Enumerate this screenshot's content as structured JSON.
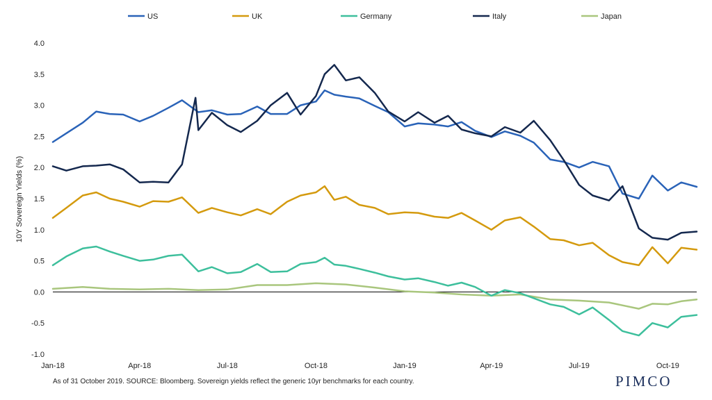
{
  "footnote": "As of 31 October 2019. SOURCE: Bloomberg.  Sovereign yields reflect the generic 10yr benchmarks for each country.",
  "brand": "PIMCO",
  "chart_data": {
    "type": "line",
    "title": "",
    "xlabel": "",
    "ylabel": "10Y Sovereign Yields (%)",
    "ylim": [
      -1.0,
      4.0
    ],
    "yticks": [
      "4.0",
      "3.5",
      "3.0",
      "2.5",
      "2.0",
      "1.5",
      "1.0",
      "0.5",
      "0.0",
      "-0.5",
      "-1.0"
    ],
    "xticks": [
      "Jan-18",
      "Apr-18",
      "Jul-18",
      "Oct-18",
      "Jan-19",
      "Apr-19",
      "Jul-19",
      "Oct-19"
    ],
    "x_tick_dates": [
      "2018-01-01",
      "2018-04-01",
      "2018-07-01",
      "2018-10-01",
      "2019-01-01",
      "2019-04-01",
      "2019-07-01",
      "2019-10-01"
    ],
    "x_range": [
      "2018-01-01",
      "2019-10-31"
    ],
    "grid": false,
    "legend_position": "top",
    "series": [
      {
        "name": "US",
        "color": "#2a63b8",
        "points": [
          [
            "2018-01-01",
            2.41
          ],
          [
            "2018-01-15",
            2.55
          ],
          [
            "2018-02-01",
            2.72
          ],
          [
            "2018-02-15",
            2.9
          ],
          [
            "2018-03-01",
            2.86
          ],
          [
            "2018-03-15",
            2.85
          ],
          [
            "2018-04-01",
            2.74
          ],
          [
            "2018-04-15",
            2.83
          ],
          [
            "2018-05-01",
            2.96
          ],
          [
            "2018-05-15",
            3.08
          ],
          [
            "2018-06-01",
            2.89
          ],
          [
            "2018-06-15",
            2.92
          ],
          [
            "2018-07-01",
            2.85
          ],
          [
            "2018-07-15",
            2.86
          ],
          [
            "2018-08-01",
            2.98
          ],
          [
            "2018-08-15",
            2.86
          ],
          [
            "2018-09-01",
            2.86
          ],
          [
            "2018-09-15",
            3.0
          ],
          [
            "2018-10-01",
            3.06
          ],
          [
            "2018-10-10",
            3.24
          ],
          [
            "2018-10-20",
            3.17
          ],
          [
            "2018-11-01",
            3.14
          ],
          [
            "2018-11-15",
            3.11
          ],
          [
            "2018-12-01",
            2.99
          ],
          [
            "2018-12-15",
            2.89
          ],
          [
            "2019-01-01",
            2.66
          ],
          [
            "2019-01-15",
            2.71
          ],
          [
            "2019-02-01",
            2.69
          ],
          [
            "2019-02-15",
            2.66
          ],
          [
            "2019-03-01",
            2.73
          ],
          [
            "2019-03-15",
            2.59
          ],
          [
            "2019-04-01",
            2.49
          ],
          [
            "2019-04-15",
            2.58
          ],
          [
            "2019-05-01",
            2.51
          ],
          [
            "2019-05-15",
            2.4
          ],
          [
            "2019-06-01",
            2.13
          ],
          [
            "2019-06-15",
            2.09
          ],
          [
            "2019-07-01",
            2.0
          ],
          [
            "2019-07-15",
            2.09
          ],
          [
            "2019-08-01",
            2.02
          ],
          [
            "2019-08-15",
            1.58
          ],
          [
            "2019-09-01",
            1.5
          ],
          [
            "2019-09-15",
            1.87
          ],
          [
            "2019-10-01",
            1.63
          ],
          [
            "2019-10-15",
            1.76
          ],
          [
            "2019-10-31",
            1.69
          ]
        ]
      },
      {
        "name": "UK",
        "color": "#d49a0e",
        "points": [
          [
            "2018-01-01",
            1.19
          ],
          [
            "2018-01-15",
            1.35
          ],
          [
            "2018-02-01",
            1.55
          ],
          [
            "2018-02-15",
            1.6
          ],
          [
            "2018-03-01",
            1.5
          ],
          [
            "2018-03-15",
            1.45
          ],
          [
            "2018-04-01",
            1.37
          ],
          [
            "2018-04-15",
            1.46
          ],
          [
            "2018-05-01",
            1.45
          ],
          [
            "2018-05-15",
            1.52
          ],
          [
            "2018-06-01",
            1.27
          ],
          [
            "2018-06-15",
            1.35
          ],
          [
            "2018-07-01",
            1.28
          ],
          [
            "2018-07-15",
            1.23
          ],
          [
            "2018-08-01",
            1.33
          ],
          [
            "2018-08-15",
            1.25
          ],
          [
            "2018-09-01",
            1.45
          ],
          [
            "2018-09-15",
            1.55
          ],
          [
            "2018-10-01",
            1.6
          ],
          [
            "2018-10-10",
            1.7
          ],
          [
            "2018-10-20",
            1.48
          ],
          [
            "2018-11-01",
            1.53
          ],
          [
            "2018-11-15",
            1.4
          ],
          [
            "2018-12-01",
            1.35
          ],
          [
            "2018-12-15",
            1.25
          ],
          [
            "2019-01-01",
            1.28
          ],
          [
            "2019-01-15",
            1.27
          ],
          [
            "2019-02-01",
            1.21
          ],
          [
            "2019-02-15",
            1.19
          ],
          [
            "2019-03-01",
            1.27
          ],
          [
            "2019-03-15",
            1.15
          ],
          [
            "2019-04-01",
            1.0
          ],
          [
            "2019-04-15",
            1.15
          ],
          [
            "2019-05-01",
            1.2
          ],
          [
            "2019-05-15",
            1.05
          ],
          [
            "2019-06-01",
            0.85
          ],
          [
            "2019-06-15",
            0.83
          ],
          [
            "2019-07-01",
            0.75
          ],
          [
            "2019-07-15",
            0.79
          ],
          [
            "2019-08-01",
            0.59
          ],
          [
            "2019-08-15",
            0.48
          ],
          [
            "2019-09-01",
            0.43
          ],
          [
            "2019-09-15",
            0.72
          ],
          [
            "2019-10-01",
            0.46
          ],
          [
            "2019-10-15",
            0.71
          ],
          [
            "2019-10-31",
            0.68
          ]
        ]
      },
      {
        "name": "Germany",
        "color": "#3dbf9c",
        "points": [
          [
            "2018-01-01",
            0.43
          ],
          [
            "2018-01-15",
            0.57
          ],
          [
            "2018-02-01",
            0.7
          ],
          [
            "2018-02-15",
            0.73
          ],
          [
            "2018-03-01",
            0.65
          ],
          [
            "2018-03-15",
            0.58
          ],
          [
            "2018-04-01",
            0.5
          ],
          [
            "2018-04-15",
            0.52
          ],
          [
            "2018-05-01",
            0.58
          ],
          [
            "2018-05-15",
            0.6
          ],
          [
            "2018-06-01",
            0.33
          ],
          [
            "2018-06-15",
            0.4
          ],
          [
            "2018-07-01",
            0.3
          ],
          [
            "2018-07-15",
            0.32
          ],
          [
            "2018-08-01",
            0.45
          ],
          [
            "2018-08-15",
            0.32
          ],
          [
            "2018-09-01",
            0.33
          ],
          [
            "2018-09-15",
            0.45
          ],
          [
            "2018-10-01",
            0.48
          ],
          [
            "2018-10-10",
            0.55
          ],
          [
            "2018-10-20",
            0.44
          ],
          [
            "2018-11-01",
            0.42
          ],
          [
            "2018-11-15",
            0.37
          ],
          [
            "2018-12-01",
            0.31
          ],
          [
            "2018-12-15",
            0.25
          ],
          [
            "2019-01-01",
            0.2
          ],
          [
            "2019-01-15",
            0.22
          ],
          [
            "2019-02-01",
            0.16
          ],
          [
            "2019-02-15",
            0.1
          ],
          [
            "2019-03-01",
            0.15
          ],
          [
            "2019-03-15",
            0.08
          ],
          [
            "2019-04-01",
            -0.06
          ],
          [
            "2019-04-15",
            0.03
          ],
          [
            "2019-05-01",
            -0.02
          ],
          [
            "2019-05-15",
            -0.1
          ],
          [
            "2019-06-01",
            -0.2
          ],
          [
            "2019-06-15",
            -0.24
          ],
          [
            "2019-07-01",
            -0.36
          ],
          [
            "2019-07-15",
            -0.25
          ],
          [
            "2019-08-01",
            -0.45
          ],
          [
            "2019-08-15",
            -0.63
          ],
          [
            "2019-09-01",
            -0.7
          ],
          [
            "2019-09-15",
            -0.5
          ],
          [
            "2019-10-01",
            -0.57
          ],
          [
            "2019-10-15",
            -0.4
          ],
          [
            "2019-10-31",
            -0.37
          ]
        ]
      },
      {
        "name": "Italy",
        "color": "#14284e",
        "points": [
          [
            "2018-01-01",
            2.02
          ],
          [
            "2018-01-15",
            1.95
          ],
          [
            "2018-02-01",
            2.02
          ],
          [
            "2018-02-15",
            2.03
          ],
          [
            "2018-03-01",
            2.05
          ],
          [
            "2018-03-15",
            1.97
          ],
          [
            "2018-04-01",
            1.76
          ],
          [
            "2018-04-15",
            1.77
          ],
          [
            "2018-05-01",
            1.76
          ],
          [
            "2018-05-15",
            2.05
          ],
          [
            "2018-05-29",
            3.12
          ],
          [
            "2018-06-01",
            2.6
          ],
          [
            "2018-06-15",
            2.88
          ],
          [
            "2018-07-01",
            2.68
          ],
          [
            "2018-07-15",
            2.57
          ],
          [
            "2018-08-01",
            2.75
          ],
          [
            "2018-08-15",
            3.0
          ],
          [
            "2018-09-01",
            3.2
          ],
          [
            "2018-09-15",
            2.85
          ],
          [
            "2018-10-01",
            3.15
          ],
          [
            "2018-10-10",
            3.5
          ],
          [
            "2018-10-20",
            3.65
          ],
          [
            "2018-11-01",
            3.4
          ],
          [
            "2018-11-15",
            3.45
          ],
          [
            "2018-12-01",
            3.2
          ],
          [
            "2018-12-15",
            2.9
          ],
          [
            "2019-01-01",
            2.74
          ],
          [
            "2019-01-15",
            2.89
          ],
          [
            "2019-02-01",
            2.72
          ],
          [
            "2019-02-15",
            2.83
          ],
          [
            "2019-03-01",
            2.61
          ],
          [
            "2019-03-15",
            2.55
          ],
          [
            "2019-04-01",
            2.5
          ],
          [
            "2019-04-15",
            2.65
          ],
          [
            "2019-05-01",
            2.56
          ],
          [
            "2019-05-15",
            2.75
          ],
          [
            "2019-06-01",
            2.44
          ],
          [
            "2019-06-15",
            2.12
          ],
          [
            "2019-07-01",
            1.72
          ],
          [
            "2019-07-15",
            1.55
          ],
          [
            "2019-08-01",
            1.47
          ],
          [
            "2019-08-15",
            1.7
          ],
          [
            "2019-09-01",
            1.02
          ],
          [
            "2019-09-15",
            0.87
          ],
          [
            "2019-10-01",
            0.84
          ],
          [
            "2019-10-15",
            0.95
          ],
          [
            "2019-10-31",
            0.97
          ]
        ]
      },
      {
        "name": "Japan",
        "color": "#a9c67d",
        "points": [
          [
            "2018-01-01",
            0.05
          ],
          [
            "2018-02-01",
            0.08
          ],
          [
            "2018-03-01",
            0.05
          ],
          [
            "2018-04-01",
            0.04
          ],
          [
            "2018-05-01",
            0.05
          ],
          [
            "2018-06-01",
            0.03
          ],
          [
            "2018-07-01",
            0.04
          ],
          [
            "2018-08-01",
            0.11
          ],
          [
            "2018-09-01",
            0.11
          ],
          [
            "2018-10-01",
            0.14
          ],
          [
            "2018-11-01",
            0.12
          ],
          [
            "2018-12-01",
            0.07
          ],
          [
            "2019-01-01",
            0.01
          ],
          [
            "2019-02-01",
            -0.01
          ],
          [
            "2019-03-01",
            -0.04
          ],
          [
            "2019-04-01",
            -0.06
          ],
          [
            "2019-05-01",
            -0.04
          ],
          [
            "2019-06-01",
            -0.12
          ],
          [
            "2019-07-01",
            -0.14
          ],
          [
            "2019-08-01",
            -0.17
          ],
          [
            "2019-09-01",
            -0.27
          ],
          [
            "2019-09-15",
            -0.19
          ],
          [
            "2019-10-01",
            -0.2
          ],
          [
            "2019-10-15",
            -0.15
          ],
          [
            "2019-10-31",
            -0.12
          ]
        ]
      }
    ]
  }
}
